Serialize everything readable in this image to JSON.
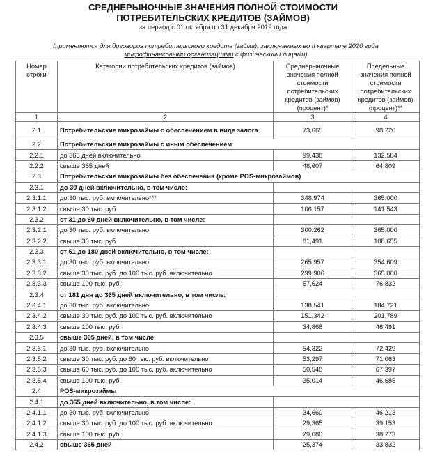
{
  "title_line1": "СРЕДНЕРЫНОЧНЫЕ ЗНАЧЕНИЯ ПОЛНОЙ СТОИМОСТИ",
  "title_line2": "ПОТРЕБИТЕЛЬСКИХ КРЕДИТОВ (ЗАЙМОВ)",
  "period": "за период с 01 октября по 31 декабря 2019 года",
  "note": {
    "open": "(",
    "u1": "применяются",
    "t1": " для договоров потребительского кредита (займа), заключаемых ",
    "u2": "во II квартале 2020 года микрофинансовыми организациями",
    "t2": " с физическими лицами)"
  },
  "headers": [
    "Номер строки",
    "Категории потребительских кредитов (займов)",
    "Среднерыночные значения полной стоимости потребительских кредитов (займов) (процент)*",
    "Предельные значения полной стоимости потребительских кредитов (займов) (процент)**"
  ],
  "column_index": [
    "1",
    "2",
    "3",
    "4"
  ],
  "rows": [
    {
      "num": "2.1",
      "label": "Потребительские микрозаймы с обеспечением в виде залога",
      "avg": "73,665",
      "max": "98,220",
      "type": "bold-item"
    },
    {
      "num": "2.2",
      "label": "Потребительские микрозаймы с иным обеспечением",
      "type": "section"
    },
    {
      "num": "2.2.1",
      "label": "до 365 дней включительно",
      "avg": "99,438",
      "max": "132,584",
      "type": "item"
    },
    {
      "num": "2.2.2",
      "label": "свыше 365 дней",
      "avg": "48,607",
      "max": "64,809",
      "type": "item"
    },
    {
      "num": "2.3",
      "label": "Потребительские микрозаймы без обеспечения (кроме POS-микрозаймов)",
      "type": "section"
    },
    {
      "num": "2.3.1",
      "label": "до 30 дней включительно, в том числе:",
      "type": "group"
    },
    {
      "num": "2.3.1.1",
      "label": "до 30 тыс. руб. включительно***",
      "avg": "348,974",
      "max": "365,000",
      "type": "item"
    },
    {
      "num": "2.3.1.2",
      "label": "свыше 30 тыс. руб.",
      "avg": "106,157",
      "max": "141,543",
      "type": "item"
    },
    {
      "num": "2.3.2",
      "label": "от 31 до 60 дней включительно, в том числе:",
      "type": "group"
    },
    {
      "num": "2.3.2.1",
      "label": "до 30 тыс. руб. включительно",
      "avg": "300,262",
      "max": "365,000",
      "type": "item"
    },
    {
      "num": "2.3.2.2",
      "label": "свыше 30 тыс. руб.",
      "avg": "81,491",
      "max": "108,655",
      "type": "item"
    },
    {
      "num": "2.3.3",
      "label": "от 61 до 180 дней включительно, в том числе:",
      "type": "group"
    },
    {
      "num": "2.3.3.1",
      "label": "до 30 тыс. руб. включительно",
      "avg": "265,957",
      "max": "354,609",
      "type": "item"
    },
    {
      "num": "2.3.3.2",
      "label": "свыше 30 тыс. руб. до 100 тыс. руб. включительно",
      "avg": "299,906",
      "max": "365,000",
      "type": "item"
    },
    {
      "num": "2.3.3.3",
      "label": "свыше 100 тыс. руб.",
      "avg": "57,624",
      "max": "76,832",
      "type": "item"
    },
    {
      "num": "2.3.4",
      "label": "от 181 дня до 365 дней включительно, в том числе:",
      "type": "group"
    },
    {
      "num": "2.3.4.1",
      "label": "до 30 тыс. руб. включительно",
      "avg": "138,541",
      "max": "184,721",
      "type": "item"
    },
    {
      "num": "2.3.4.2",
      "label": "свыше 30 тыс. руб. до 100 тыс. руб. включительно",
      "avg": "151,342",
      "max": "201,789",
      "type": "item"
    },
    {
      "num": "2.3.4.3",
      "label": "свыше 100 тыс. руб.",
      "avg": "34,868",
      "max": "46,491",
      "type": "item"
    },
    {
      "num": "2.3.5",
      "label": "свыше 365 дней, в том числе:",
      "type": "group"
    },
    {
      "num": "2.3.5.1",
      "label": "до 30 тыс. руб. включительно",
      "avg": "54,322",
      "max": "72,429",
      "type": "item"
    },
    {
      "num": "2.3.5.2",
      "label": "свыше 30 тыс. руб. до 60 тыс. руб. включительно",
      "avg": "53,297",
      "max": "71,063",
      "type": "item"
    },
    {
      "num": "2.3.5.3",
      "label": "свыше 60 тыс. руб. до 100 тыс. руб. включительно",
      "avg": "50,548",
      "max": "67,397",
      "type": "item"
    },
    {
      "num": "2.3.5.4",
      "label": "свыше 100 тыс. руб.",
      "avg": "35,014",
      "max": "46,685",
      "type": "item"
    },
    {
      "num": "2.4",
      "label": "POS-микрозаймы",
      "type": "section"
    },
    {
      "num": "2.4.1",
      "label": "до 365 дней включительно, в том числе:",
      "type": "group"
    },
    {
      "num": "2.4.1.1",
      "label": "до 30 тыс. руб. включительно",
      "avg": "34,660",
      "max": "46,213",
      "type": "item"
    },
    {
      "num": "2.4.1.2",
      "label": "свыше 30 тыс. руб. до 100 тыс. руб. включительно",
      "avg": "29,365",
      "max": "39,153",
      "type": "item"
    },
    {
      "num": "2.4.1.3",
      "label": "свыше 100 тыс. руб.",
      "avg": "29,080",
      "max": "38,773",
      "type": "item"
    },
    {
      "num": "2.4.2",
      "label": "свыше 365 дней",
      "avg": "25,374",
      "max": "33,832",
      "type": "bold-item"
    }
  ]
}
